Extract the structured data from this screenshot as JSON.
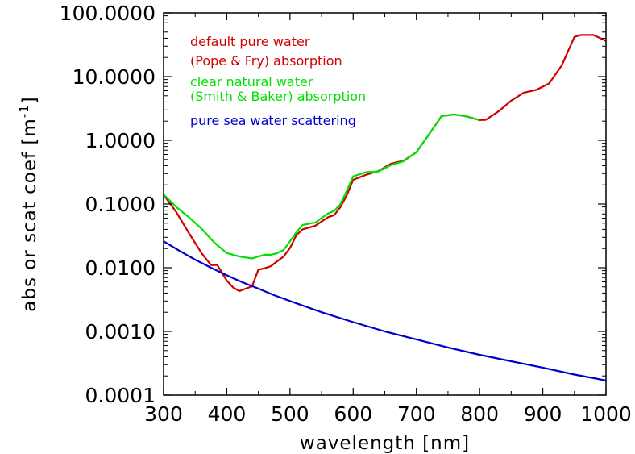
{
  "chart_data": {
    "type": "line",
    "title": "",
    "xlabel": "wavelength [nm]",
    "ylabel": "abs or scat coef [m",
    "ylabel_sup": "-1",
    "ylabel_close": "]",
    "xlim": [
      300,
      1000
    ],
    "ylim": [
      0.0001,
      100
    ],
    "yscale": "log",
    "grid": false,
    "legend_position": "top-left",
    "x_ticks": [
      300,
      400,
      500,
      600,
      700,
      800,
      900,
      1000
    ],
    "x_tick_labels": [
      "300",
      "400",
      "500",
      "600",
      "700",
      "800",
      "900",
      "1000"
    ],
    "y_ticks": [
      0.0001,
      0.001,
      0.01,
      0.1,
      1,
      10,
      100
    ],
    "y_tick_labels": [
      "0.0001",
      "0.0010",
      "0.0100",
      "0.1000",
      "1.0000",
      "10.0000",
      "100.0000"
    ],
    "series": [
      {
        "name": "default pure water (Pope & Fry) absorption",
        "legend_lines": [
          "default pure water",
          "(Pope & Fry) absorption"
        ],
        "color": "#d00000",
        "x": [
          300,
          320,
          340,
          360,
          375,
          385,
          400,
          410,
          420,
          430,
          440,
          450,
          460,
          470,
          480,
          490,
          500,
          510,
          520,
          540,
          560,
          570,
          580,
          590,
          600,
          620,
          640,
          660,
          680,
          700,
          720,
          740,
          760,
          780,
          800,
          810,
          830,
          850,
          870,
          890,
          910,
          930,
          950,
          960,
          980,
          1000
        ],
        "y": [
          0.14,
          0.075,
          0.035,
          0.017,
          0.011,
          0.011,
          0.0063,
          0.0049,
          0.0043,
          0.0047,
          0.0051,
          0.0093,
          0.0098,
          0.0106,
          0.0127,
          0.015,
          0.0204,
          0.0325,
          0.04,
          0.0457,
          0.062,
          0.067,
          0.09,
          0.138,
          0.24,
          0.287,
          0.329,
          0.43,
          0.48,
          0.65,
          1.24,
          2.41,
          2.55,
          2.37,
          2.08,
          2.1,
          2.85,
          4.2,
          5.6,
          6.2,
          7.8,
          15.0,
          42.0,
          45.0,
          45.0,
          36.5
        ]
      },
      {
        "name": "clear natural water (Smith & Baker) absorption",
        "legend_lines": [
          "clear natural water",
          "(Smith & Baker) absorption"
        ],
        "color": "#00e000",
        "x": [
          300,
          320,
          340,
          360,
          380,
          400,
          420,
          440,
          450,
          460,
          470,
          480,
          490,
          500,
          510,
          520,
          540,
          560,
          570,
          580,
          590,
          600,
          620,
          640,
          660,
          680,
          700,
          720,
          740,
          760,
          780,
          800
        ],
        "y": [
          0.141,
          0.09,
          0.062,
          0.041,
          0.025,
          0.017,
          0.015,
          0.014,
          0.015,
          0.016,
          0.016,
          0.017,
          0.019,
          0.026,
          0.036,
          0.047,
          0.051,
          0.071,
          0.078,
          0.1,
          0.162,
          0.272,
          0.315,
          0.325,
          0.41,
          0.47,
          0.65,
          1.24,
          2.4,
          2.55,
          2.37,
          2.08
        ]
      },
      {
        "name": "pure sea water scattering",
        "legend_lines": [
          "pure sea water scattering"
        ],
        "color": "#0000cc",
        "x": [
          300,
          325,
          350,
          375,
          400,
          425,
          450,
          475,
          500,
          550,
          600,
          650,
          700,
          750,
          800,
          850,
          900,
          950,
          1000
        ],
        "y": [
          0.026,
          0.0185,
          0.0134,
          0.01,
          0.0076,
          0.0059,
          0.0047,
          0.0037,
          0.003,
          0.002,
          0.0014,
          0.001,
          0.00075,
          0.00056,
          0.00043,
          0.00034,
          0.00027,
          0.00021,
          0.00017
        ]
      }
    ]
  }
}
